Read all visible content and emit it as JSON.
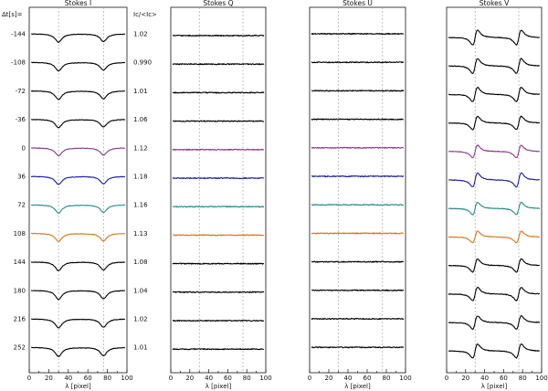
{
  "chart_data": {
    "type": "line",
    "time_header": "Δt[s]=",
    "ratio_header": "Iᴄ/<Iᴄ>",
    "row_times": [
      "-144",
      "-108",
      "-72",
      "-36",
      "0",
      "36",
      "72",
      "108",
      "144",
      "180",
      "216",
      "252"
    ],
    "row_ratios": [
      "1.02",
      "0.990",
      "1.01",
      "1.06",
      "1.12",
      "1.18",
      "1.16",
      "1.13",
      "1.08",
      "1.04",
      "1.02",
      "1.01"
    ],
    "row_colors": [
      "#000000",
      "#000000",
      "#000000",
      "#000000",
      "#8a3a8a",
      "#1c1c9c",
      "#2a8a8a",
      "#d07a20",
      "#000000",
      "#000000",
      "#000000",
      "#000000"
    ],
    "x_range": [
      0,
      100
    ],
    "x_ticks": [
      "0",
      "20",
      "40",
      "60",
      "80",
      "100"
    ],
    "xlabel": "λ [pixel]",
    "guide_lines_x": [
      30,
      76
    ],
    "panels": [
      {
        "title": "Stokes I",
        "kind": "I",
        "amp": [
          0.7,
          0.72,
          0.72,
          0.7,
          0.66,
          0.68,
          0.68,
          0.68,
          0.74,
          0.76,
          0.76,
          0.76
        ]
      },
      {
        "title": "Stokes Q",
        "kind": "flat",
        "amp": [
          0,
          0,
          0,
          0,
          0,
          0,
          0,
          0,
          0,
          0,
          0,
          0
        ]
      },
      {
        "title": "Stokes U",
        "kind": "flat",
        "amp": [
          0,
          0,
          0,
          0,
          0,
          0,
          0,
          0,
          0,
          0,
          0,
          0
        ]
      },
      {
        "title": "Stokes V",
        "kind": "V",
        "amp": [
          0.95,
          0.95,
          0.92,
          0.85,
          0.8,
          0.9,
          0.8,
          0.75,
          0.85,
          0.85,
          0.85,
          0.9
        ]
      }
    ]
  }
}
